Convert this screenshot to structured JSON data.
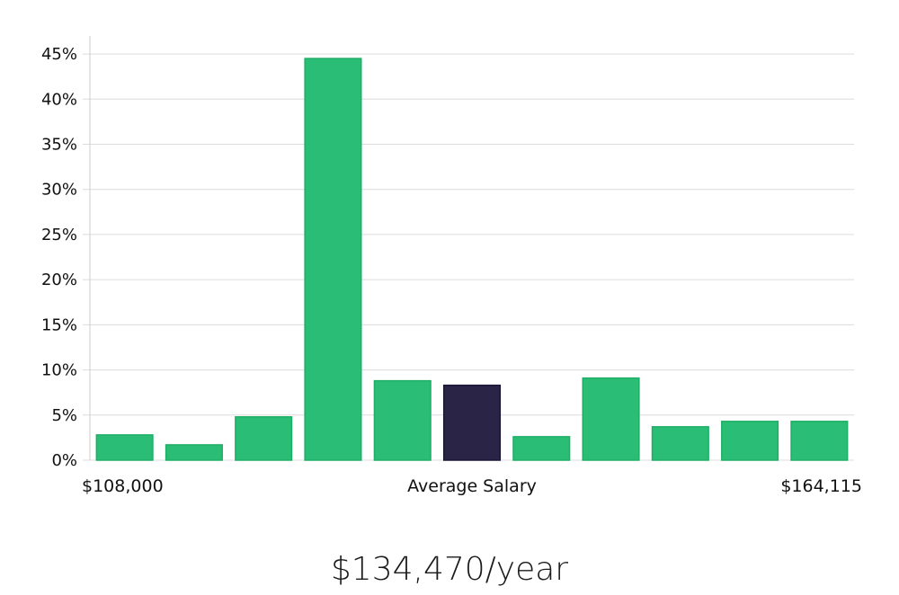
{
  "chart_data": {
    "type": "bar",
    "y_unit": "%",
    "ylim": [
      0,
      47
    ],
    "yticks": [
      0,
      5,
      10,
      15,
      20,
      25,
      30,
      35,
      40,
      45
    ],
    "ytick_labels": [
      "0%",
      "5%",
      "10%",
      "15%",
      "20%",
      "25%",
      "30%",
      "35%",
      "40%",
      "45%"
    ],
    "grid": true,
    "values": [
      2.8,
      1.7,
      4.8,
      44.5,
      8.8,
      8.3,
      2.6,
      9.1,
      3.7,
      4.3,
      4.3
    ],
    "highlight_index": 5,
    "colors": {
      "bar": "#2abd76",
      "bar_edge": "#1fae66",
      "highlight": "#2a2547",
      "grid": "#dcdcdc",
      "axis": "#cccccc"
    },
    "x_labels": {
      "left": "$108,000",
      "center": "Average Salary",
      "right": "$164,115"
    }
  },
  "footer": {
    "average_salary": "$134,470/year"
  }
}
